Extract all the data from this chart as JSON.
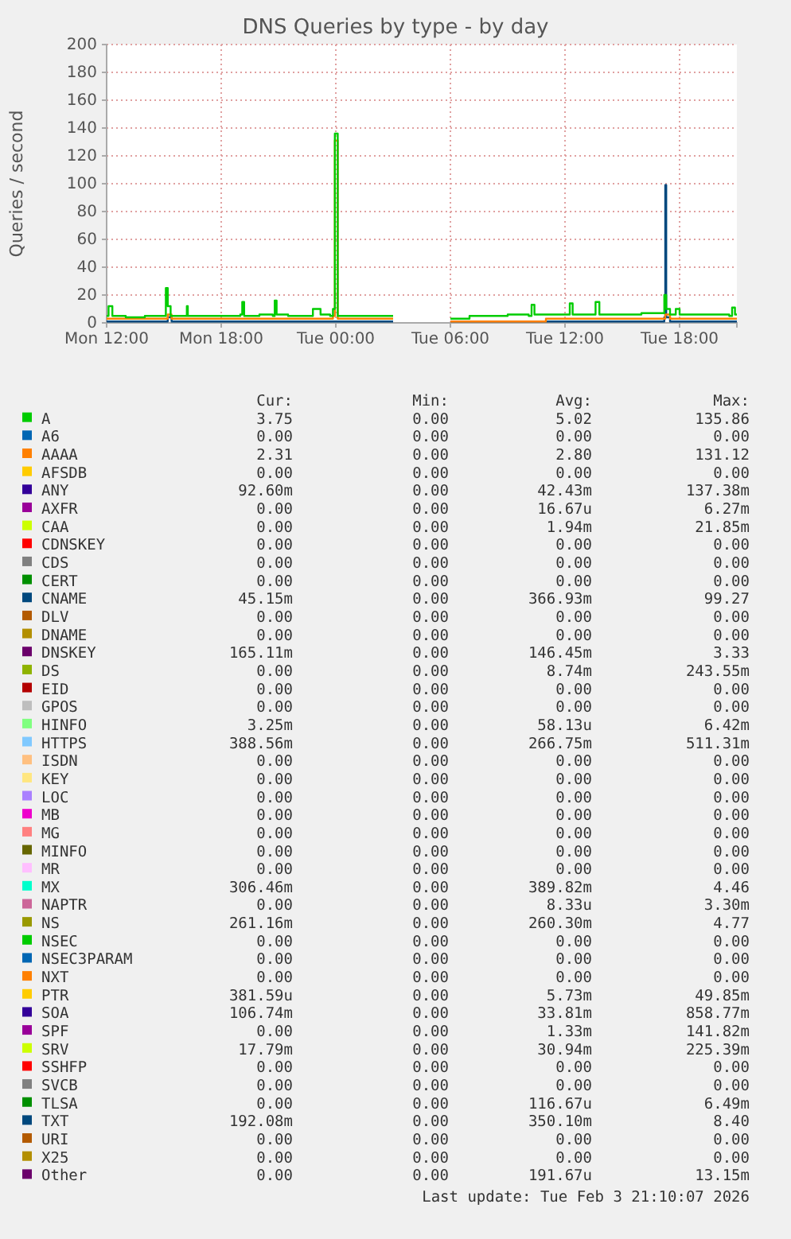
{
  "chart_data": {
    "type": "step",
    "title": "DNS Queries by type - by day",
    "ylabel": "Queries / second",
    "xlim": [
      "2026-02-02T12:00",
      "2026-02-03T21:00"
    ],
    "xticks": [
      {
        "value": "2026-02-02T12:00",
        "label": "Mon 12:00"
      },
      {
        "value": "2026-02-02T18:00",
        "label": "Mon 18:00"
      },
      {
        "value": "2026-02-03T00:00",
        "label": "Tue 00:00"
      },
      {
        "value": "2026-02-03T06:00",
        "label": "Tue 06:00"
      },
      {
        "value": "2026-02-03T12:00",
        "label": "Tue 12:00"
      },
      {
        "value": "2026-02-03T18:00",
        "label": "Tue 18:00"
      }
    ],
    "ylim": [
      0,
      200
    ],
    "yticks": [
      0,
      20,
      40,
      60,
      80,
      100,
      120,
      140,
      160,
      180,
      200
    ],
    "grid": true,
    "legend": "bottom",
    "series": [
      {
        "name": "A",
        "color": "#00cc00",
        "x": [
          "2026-02-02T12:00",
          "2026-02-02T12:06",
          "2026-02-02T12:18",
          "2026-02-02T13:00",
          "2026-02-02T14:00",
          "2026-02-02T15:00",
          "2026-02-02T15:06",
          "2026-02-02T15:12",
          "2026-02-02T15:21",
          "2026-02-02T15:30",
          "2026-02-02T16:00",
          "2026-02-02T16:12",
          "2026-02-02T16:15",
          "2026-02-02T16:24",
          "2026-02-02T17:00",
          "2026-02-02T18:00",
          "2026-02-02T18:30",
          "2026-02-02T19:00",
          "2026-02-02T19:06",
          "2026-02-02T19:12",
          "2026-02-02T20:00",
          "2026-02-02T20:42",
          "2026-02-02T20:48",
          "2026-02-02T20:54",
          "2026-02-02T21:30",
          "2026-02-02T22:00",
          "2026-02-02T22:48",
          "2026-02-02T23:12",
          "2026-02-02T23:42",
          "2026-02-02T23:51",
          "2026-02-02T23:57",
          "2026-02-03T00:06",
          "2026-02-03T00:30",
          "2026-02-03T00:54",
          "2026-02-03T03:00",
          "2026-02-03T06:00",
          "2026-02-03T07:00",
          "2026-02-03T08:00",
          "2026-02-03T09:00",
          "2026-02-03T10:06",
          "2026-02-03T10:15",
          "2026-02-03T10:24",
          "2026-02-03T11:00",
          "2026-02-03T12:06",
          "2026-02-03T12:15",
          "2026-02-03T12:24",
          "2026-02-03T13:00",
          "2026-02-03T13:30",
          "2026-02-03T13:36",
          "2026-02-03T13:48",
          "2026-02-03T15:00",
          "2026-02-03T16:00",
          "2026-02-03T17:00",
          "2026-02-03T17:12",
          "2026-02-03T17:18",
          "2026-02-03T17:30",
          "2026-02-03T17:48",
          "2026-02-03T18:00",
          "2026-02-03T19:00",
          "2026-02-03T20:00",
          "2026-02-03T20:36",
          "2026-02-03T20:45",
          "2026-02-03T20:54",
          "2026-02-03T21:00"
        ],
        "values": [
          5,
          12,
          5,
          4,
          5,
          5,
          25,
          12,
          5,
          5,
          5,
          12,
          5,
          5,
          5,
          5,
          5,
          6,
          15,
          5,
          6,
          5,
          16,
          6,
          5,
          5,
          10,
          6,
          5,
          10,
          136,
          5,
          5,
          5,
          null,
          3,
          5,
          5,
          6,
          5,
          13,
          6,
          6,
          6,
          14,
          6,
          6,
          6,
          15,
          6,
          6,
          7,
          7,
          20,
          10,
          6,
          10,
          6,
          6,
          6,
          5,
          11,
          6,
          6
        ]
      },
      {
        "name": "A6",
        "color": "#0066b3"
      },
      {
        "name": "AAAA",
        "color": "#ff8000",
        "x": [
          "2026-02-02T12:00",
          "2026-02-02T15:00",
          "2026-02-02T15:12",
          "2026-02-02T15:24",
          "2026-02-02T20:00",
          "2026-02-02T23:42",
          "2026-02-02T23:51",
          "2026-02-02T23:57",
          "2026-02-03T00:06",
          "2026-02-03T00:54",
          "2026-02-03T03:00",
          "2026-02-03T06:00",
          "2026-02-03T11:00",
          "2026-02-03T16:00",
          "2026-02-03T17:15",
          "2026-02-03T17:30",
          "2026-02-03T21:00"
        ],
        "values": [
          3,
          3,
          6,
          3,
          3,
          3,
          5,
          131,
          3,
          3,
          null,
          1,
          3,
          3,
          6,
          3,
          3
        ]
      },
      {
        "name": "AFSDB",
        "color": "#ffcc00"
      },
      {
        "name": "ANY",
        "color": "#330099"
      },
      {
        "name": "AXFR",
        "color": "#990099"
      },
      {
        "name": "CAA",
        "color": "#ccff00"
      },
      {
        "name": "CDNSKEY",
        "color": "#ff0000"
      },
      {
        "name": "CDS",
        "color": "#808080"
      },
      {
        "name": "CERT",
        "color": "#008f00"
      },
      {
        "name": "CNAME",
        "color": "#00487d",
        "x": [
          "2026-02-02T12:00",
          "2026-02-02T15:00",
          "2026-02-02T15:12",
          "2026-02-02T15:24",
          "2026-02-03T00:54",
          "2026-02-03T03:00",
          "2026-02-03T06:00",
          "2026-02-03T17:00",
          "2026-02-03T17:12",
          "2026-02-03T17:15",
          "2026-02-03T17:18",
          "2026-02-03T17:30",
          "2026-02-03T21:00"
        ],
        "values": [
          1,
          1,
          4,
          1,
          1,
          null,
          1,
          1,
          4,
          99,
          4,
          1,
          1
        ]
      },
      {
        "name": "DLV",
        "color": "#b35a00"
      },
      {
        "name": "DNAME",
        "color": "#b38f00"
      },
      {
        "name": "DNSKEY",
        "color": "#6b006b"
      },
      {
        "name": "DS",
        "color": "#8fb300"
      },
      {
        "name": "EID",
        "color": "#b30000"
      },
      {
        "name": "GPOS",
        "color": "#bebebe"
      },
      {
        "name": "HINFO",
        "color": "#80ff80"
      },
      {
        "name": "HTTPS",
        "color": "#80c9ff"
      },
      {
        "name": "ISDN",
        "color": "#ffc080"
      },
      {
        "name": "KEY",
        "color": "#ffe680"
      },
      {
        "name": "LOC",
        "color": "#aa80ff"
      },
      {
        "name": "MB",
        "color": "#ee00cc"
      },
      {
        "name": "MG",
        "color": "#ff8080"
      },
      {
        "name": "MINFO",
        "color": "#666600"
      },
      {
        "name": "MR",
        "color": "#ffbfff"
      },
      {
        "name": "MX",
        "color": "#00ffcc"
      },
      {
        "name": "NAPTR",
        "color": "#cc6699"
      },
      {
        "name": "NS",
        "color": "#999900"
      },
      {
        "name": "NSEC",
        "color": "#00cc00"
      },
      {
        "name": "NSEC3PARAM",
        "color": "#0066b3"
      },
      {
        "name": "NXT",
        "color": "#ff8000"
      },
      {
        "name": "PTR",
        "color": "#ffcc00"
      },
      {
        "name": "SOA",
        "color": "#330099"
      },
      {
        "name": "SPF",
        "color": "#990099"
      },
      {
        "name": "SRV",
        "color": "#ccff00"
      },
      {
        "name": "SSHFP",
        "color": "#ff0000"
      },
      {
        "name": "SVCB",
        "color": "#808080"
      },
      {
        "name": "TLSA",
        "color": "#008f00"
      },
      {
        "name": "TXT",
        "color": "#00487d"
      },
      {
        "name": "URI",
        "color": "#b35a00"
      },
      {
        "name": "X25",
        "color": "#b38f00"
      },
      {
        "name": "Other",
        "color": "#6b006b"
      }
    ],
    "annotations": [
      "Cur:",
      "Min:",
      "Avg:",
      "Max:",
      "3.75",
      "0.00",
      "5.02",
      "135.86",
      "0.00",
      "0.00",
      "0.00",
      "0.00",
      "2.31",
      "0.00",
      "2.80",
      "131.12",
      "0.00",
      "0.00",
      "0.00",
      "0.00",
      "92.60m",
      "0.00",
      "42.43m",
      "137.38m",
      "0.00",
      "0.00",
      "16.67u",
      "6.27m",
      "0.00",
      "0.00",
      "1.94m",
      "21.85m",
      "0.00",
      "0.00",
      "0.00",
      "0.00",
      "0.00",
      "0.00",
      "0.00",
      "0.00",
      "0.00",
      "0.00",
      "0.00",
      "0.00",
      "45.15m",
      "0.00",
      "366.93m",
      "99.27",
      "0.00",
      "0.00",
      "0.00",
      "0.00",
      "0.00",
      "0.00",
      "0.00",
      "0.00",
      "165.11m",
      "0.00",
      "146.45m",
      "3.33",
      "0.00",
      "0.00",
      "8.74m",
      "243.55m",
      "0.00",
      "0.00",
      "0.00",
      "0.00",
      "0.00",
      "0.00",
      "0.00",
      "0.00",
      "3.25m",
      "0.00",
      "58.13u",
      "6.42m",
      "388.56m",
      "0.00",
      "266.75m",
      "511.31m",
      "0.00",
      "0.00",
      "0.00",
      "0.00",
      "0.00",
      "0.00",
      "0.00",
      "0.00",
      "0.00",
      "0.00",
      "0.00",
      "0.00",
      "0.00",
      "0.00",
      "0.00",
      "0.00",
      "0.00",
      "0.00",
      "0.00",
      "0.00",
      "0.00",
      "0.00",
      "0.00",
      "0.00",
      "0.00",
      "0.00",
      "0.00",
      "0.00",
      "306.46m",
      "0.00",
      "389.82m",
      "4.46",
      "0.00",
      "0.00",
      "8.33u",
      "3.30m",
      "261.16m",
      "0.00",
      "260.30m",
      "4.77",
      "0.00",
      "0.00",
      "0.00",
      "0.00",
      "0.00",
      "0.00",
      "0.00",
      "0.00",
      "0.00",
      "0.00",
      "0.00",
      "0.00",
      "381.59u",
      "0.00",
      "5.73m",
      "49.85m",
      "106.74m",
      "0.00",
      "33.81m",
      "858.77m",
      "0.00",
      "0.00",
      "1.33m",
      "141.82m",
      "17.79m",
      "0.00",
      "30.94m",
      "225.39m",
      "0.00",
      "0.00",
      "0.00",
      "0.00",
      "0.00",
      "0.00",
      "0.00",
      "0.00",
      "0.00",
      "0.00",
      "116.67u",
      "6.49m",
      "192.08m",
      "0.00",
      "350.10m",
      "8.40",
      "0.00",
      "0.00",
      "0.00",
      "0.00",
      "0.00",
      "0.00",
      "0.00",
      "0.00",
      "0.00",
      "0.00",
      "191.67u",
      "13.15m",
      "Last update: Tue Feb  3 21:10:07 2026"
    ]
  }
}
